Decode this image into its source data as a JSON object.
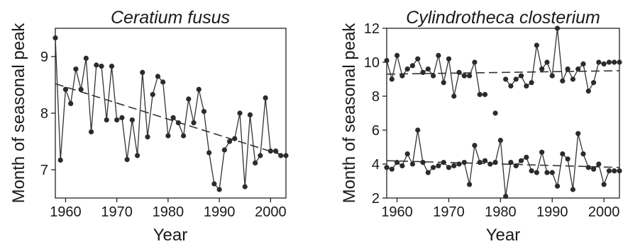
{
  "chart_data": [
    {
      "type": "line",
      "title": "Ceratium fusus",
      "xlabel": "Year",
      "ylabel": "Month of seasonal peak",
      "xlim": [
        1958,
        2003
      ],
      "ylim": [
        6.5,
        9.5
      ],
      "xticks": [
        1960,
        1970,
        1980,
        1990,
        2000
      ],
      "yticks": [
        7,
        8,
        9
      ],
      "series": [
        {
          "x": [
            1958,
            1959,
            1960,
            1961,
            1962,
            1963,
            1964,
            1965,
            1966,
            1967,
            1968,
            1969,
            1970,
            1971,
            1972,
            1973,
            1974,
            1975,
            1976,
            1977,
            1978,
            1979,
            1980,
            1981,
            1982,
            1983,
            1984,
            1985,
            1986,
            1987,
            1988,
            1989,
            1990,
            1991,
            1992,
            1993,
            1994,
            1995,
            1996,
            1997,
            1998,
            1999,
            2000,
            2001,
            2002,
            2003
          ],
          "y": [
            9.33,
            7.17,
            8.42,
            8.17,
            8.78,
            8.42,
            8.97,
            7.67,
            8.85,
            8.83,
            7.88,
            8.83,
            7.88,
            7.92,
            7.18,
            7.88,
            7.25,
            8.72,
            7.58,
            8.33,
            8.65,
            8.55,
            7.6,
            7.92,
            7.83,
            7.6,
            8.25,
            7.83,
            8.42,
            8.03,
            7.3,
            6.75,
            6.65,
            7.35,
            7.5,
            7.55,
            8.0,
            6.7,
            7.97,
            7.12,
            7.25,
            8.27,
            7.33,
            7.33,
            7.25,
            7.25
          ]
        }
      ],
      "trends": [
        {
          "x": [
            1958,
            2003
          ],
          "y": [
            8.52,
            7.24
          ]
        }
      ]
    },
    {
      "type": "line",
      "title": "Cylindrotheca closterium",
      "xlabel": "Year",
      "ylabel": "Month of seasonal peak",
      "xlim": [
        1958,
        2003
      ],
      "ylim": [
        2,
        12
      ],
      "xticks": [
        1960,
        1970,
        1980,
        1990,
        2000
      ],
      "yticks": [
        2,
        4,
        6,
        8,
        10,
        12
      ],
      "series": [
        {
          "segments": [
            {
              "x": [
                1958,
                1959,
                1960,
                1961,
                1962,
                1963,
                1964,
                1965,
                1966,
                1967,
                1968,
                1969,
                1970,
                1971,
                1972,
                1973,
                1974,
                1975,
                1976,
                1977
              ],
              "y": [
                10.1,
                9.0,
                10.4,
                9.2,
                9.6,
                9.8,
                10.2,
                9.4,
                9.6,
                9.2,
                10.4,
                8.8,
                10.2,
                8.0,
                9.4,
                9.2,
                9.2,
                10.0,
                8.1,
                8.1
              ]
            },
            {
              "x": [
                1979
              ],
              "y": [
                7.0
              ]
            },
            {
              "x": [
                1981,
                1982,
                1983,
                1984,
                1985,
                1986,
                1987,
                1988,
                1989,
                1990,
                1991,
                1992,
                1993,
                1994,
                1995,
                1996,
                1997,
                1998,
                1999,
                2000,
                2001,
                2002,
                2003
              ],
              "y": [
                9.0,
                8.6,
                9.0,
                9.2,
                8.6,
                8.8,
                11.0,
                9.6,
                10.0,
                9.2,
                12.0,
                8.9,
                9.6,
                9.0,
                9.6,
                9.9,
                8.3,
                8.8,
                10.0,
                9.9,
                10.0,
                10.0,
                10.0
              ]
            }
          ]
        },
        {
          "segments": [
            {
              "x": [
                1958,
                1959,
                1960,
                1961,
                1962,
                1963,
                1964,
                1965,
                1966,
                1967,
                1968,
                1969,
                1970,
                1971,
                1972,
                1973,
                1974,
                1975,
                1976,
                1977,
                1978,
                1979,
                1980,
                1981,
                1982,
                1983,
                1984,
                1985,
                1986,
                1987,
                1988,
                1989,
                1990,
                1991,
                1992,
                1993,
                1994,
                1995,
                1996,
                1997,
                1998,
                1999,
                2000,
                2001,
                2002,
                2003
              ],
              "y": [
                3.8,
                3.7,
                4.1,
                3.9,
                4.6,
                4.0,
                6.0,
                4.1,
                3.5,
                3.8,
                3.9,
                4.1,
                3.8,
                3.9,
                4.0,
                4.1,
                2.8,
                5.1,
                4.1,
                4.2,
                4.0,
                4.1,
                5.4,
                2.1,
                4.1,
                3.9,
                4.2,
                4.4,
                3.6,
                3.5,
                4.7,
                3.5,
                3.5,
                2.7,
                4.6,
                4.3,
                2.5,
                5.8,
                4.6,
                3.8,
                3.7,
                4.0,
                2.8,
                3.6,
                3.6,
                3.6
              ]
            }
          ]
        }
      ],
      "trends": [
        {
          "x": [
            1958,
            2003
          ],
          "y": [
            9.3,
            9.5
          ]
        },
        {
          "x": [
            1958,
            2003
          ],
          "y": [
            4.2,
            3.8
          ]
        }
      ]
    }
  ]
}
